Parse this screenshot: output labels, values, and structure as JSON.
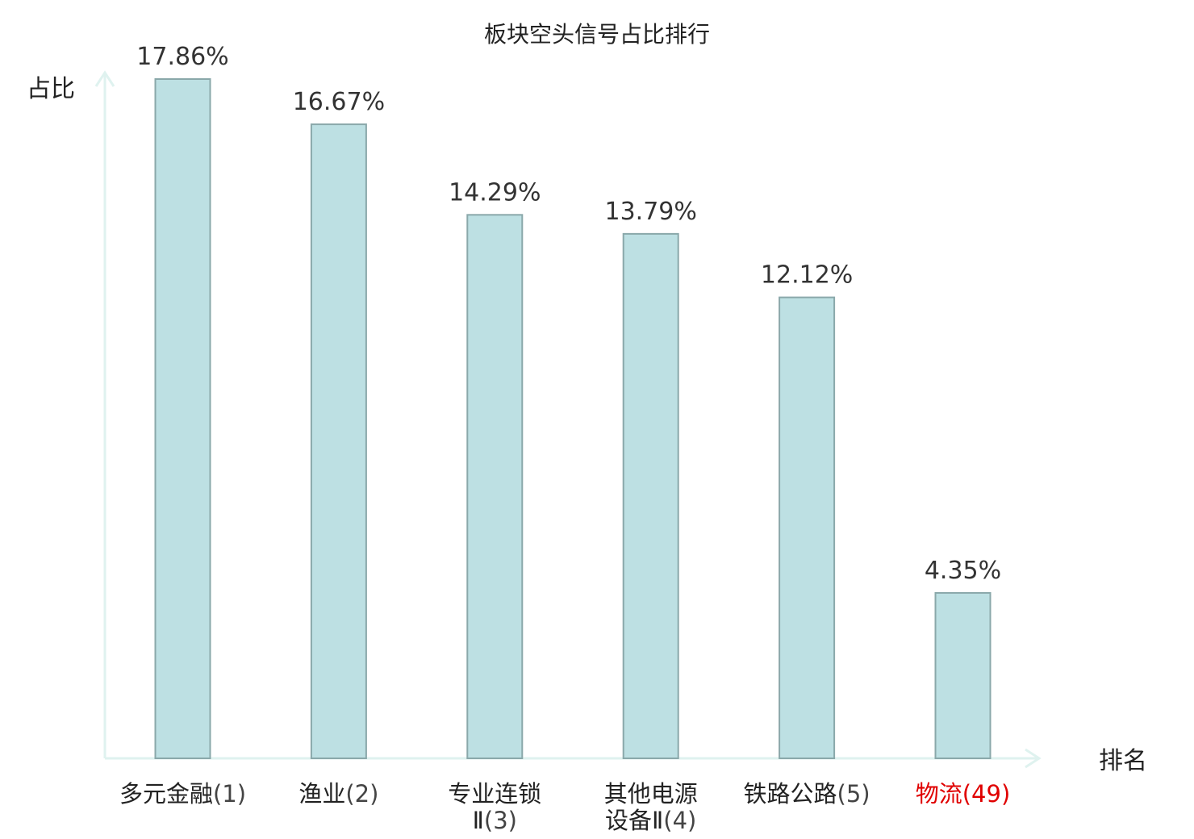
{
  "chart_data": {
    "type": "bar",
    "title": "板块空头信号占比排行",
    "ylabel": "占比",
    "xlabel": "排名",
    "ylim": [
      0,
      17.86
    ],
    "grid": false,
    "legend": "none",
    "categories": [
      {
        "lines": [
          "多元金融"
        ],
        "rank": "(1)",
        "highlight": false
      },
      {
        "lines": [
          "渔业"
        ],
        "rank": "(2)",
        "highlight": false
      },
      {
        "lines": [
          "专业连锁",
          "Ⅱ"
        ],
        "rank": "(3)",
        "highlight": false
      },
      {
        "lines": [
          "其他电源",
          "设备Ⅱ"
        ],
        "rank": "(4)",
        "highlight": false
      },
      {
        "lines": [
          "铁路公路"
        ],
        "rank": "(5)",
        "highlight": false
      },
      {
        "lines": [
          "物流"
        ],
        "rank": "(49)",
        "highlight": true
      }
    ],
    "values": [
      17.86,
      16.67,
      14.29,
      13.79,
      12.12,
      4.35
    ],
    "value_labels": [
      "17.86%",
      "16.67%",
      "14.29%",
      "13.79%",
      "12.12%",
      "4.35%"
    ],
    "colors": {
      "bar_fill": "#bde0e3",
      "bar_stroke": "#8aa8aa",
      "axis": "#dff2ef",
      "highlight": "#e00000"
    }
  }
}
